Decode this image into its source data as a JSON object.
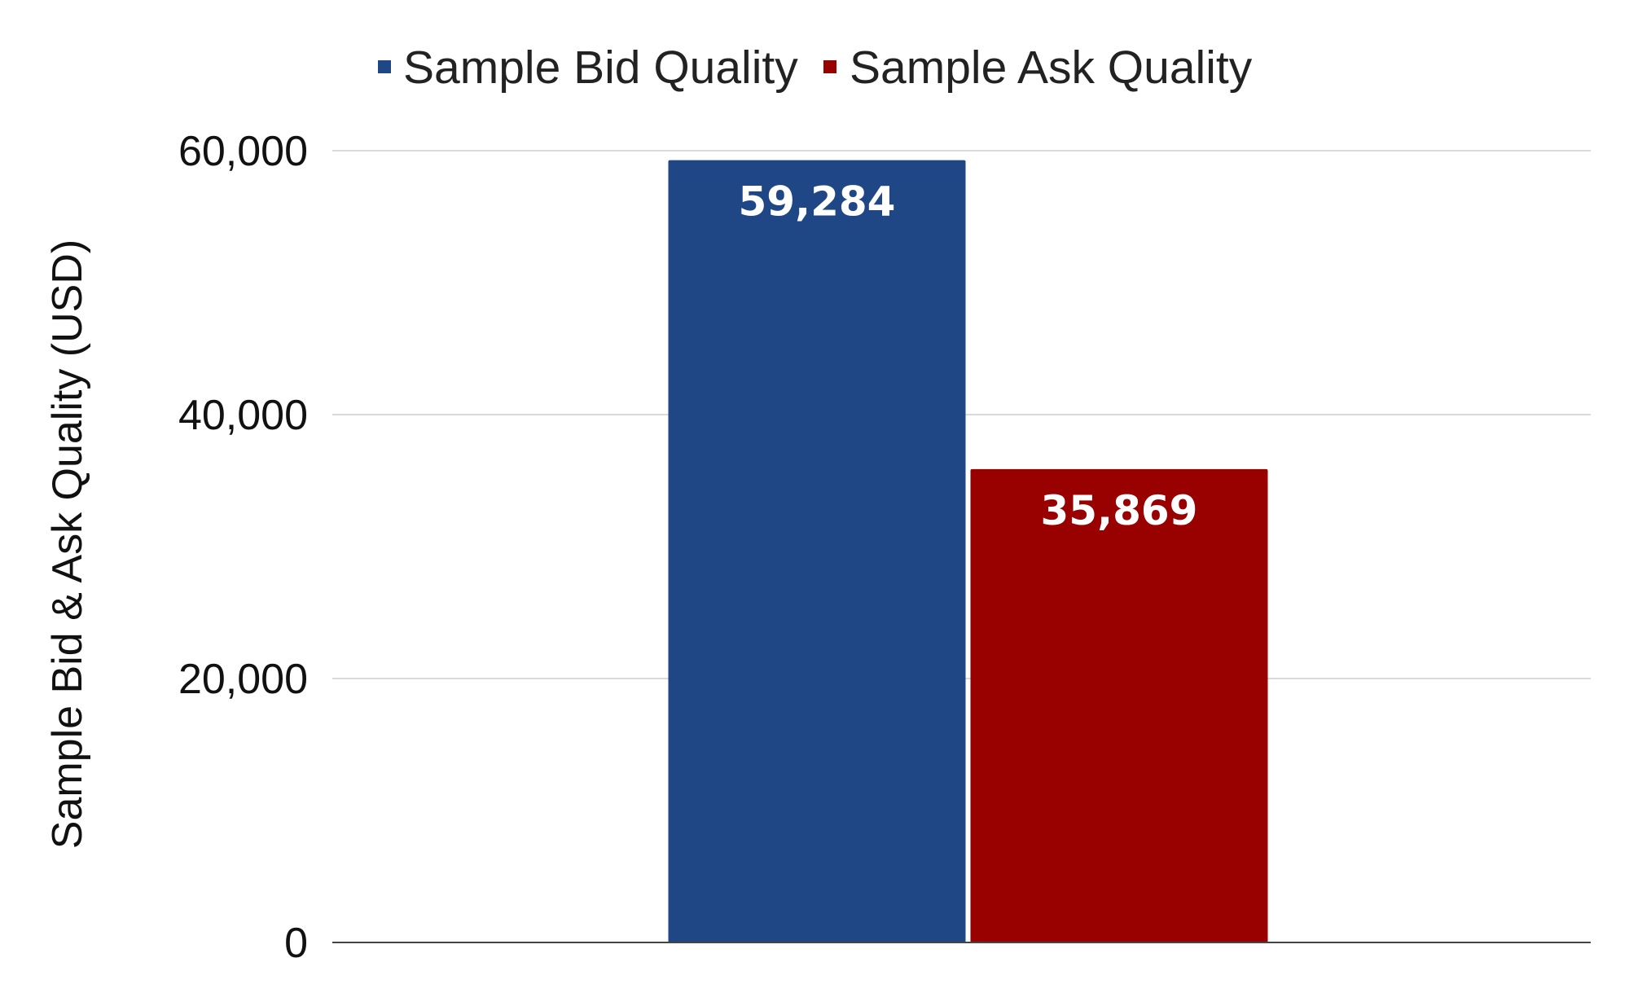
{
  "chart_data": {
    "type": "bar",
    "categories": [
      ""
    ],
    "series": [
      {
        "name": "Sample Bid Quality",
        "values": [
          59284
        ],
        "label": "59,284",
        "color": "#1f4785"
      },
      {
        "name": "Sample Ask Quality",
        "values": [
          35869
        ],
        "label": "35,869",
        "color": "#990000"
      }
    ],
    "xlabel": "",
    "ylabel": "Sample Bid & Ask Quality (USD)",
    "ylim": [
      0,
      60000
    ],
    "yticks": [
      {
        "value": 0,
        "label": "0"
      },
      {
        "value": 20000,
        "label": "20,000"
      },
      {
        "value": 40000,
        "label": "40,000"
      },
      {
        "value": 60000,
        "label": "60,000"
      }
    ],
    "grid": true,
    "legend_position": "top",
    "colors": {
      "gridline": "#d9d9d9",
      "axis": "#444444"
    }
  }
}
